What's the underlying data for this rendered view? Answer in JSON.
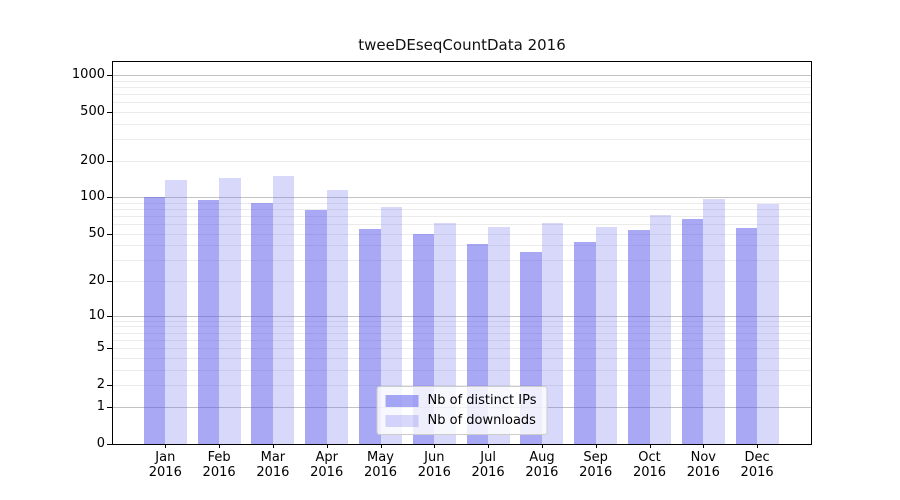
{
  "chart_data": {
    "type": "bar",
    "title": "tweeDEseqCountData 2016",
    "categories": [
      "Jan",
      "Feb",
      "Mar",
      "Apr",
      "May",
      "Jun",
      "Jul",
      "Aug",
      "Sep",
      "Oct",
      "Nov",
      "Dec"
    ],
    "x_year_suffix": "2016",
    "series": [
      {
        "name": "Nb of distinct IPs",
        "color": "rgba(81,81,235,0.5)",
        "values": [
          100,
          96,
          90,
          79,
          55,
          50,
          41,
          35,
          43,
          54,
          66,
          56
        ]
      },
      {
        "name": "Nb of downloads",
        "color": "rgba(100,100,240,0.25)",
        "values": [
          139,
          144,
          150,
          115,
          83,
          62,
          57,
          62,
          57,
          71,
          97,
          89
        ]
      }
    ],
    "yscale": "log1p",
    "ylim": [
      0,
      1000
    ],
    "y_ticks": [
      1000,
      500,
      200,
      100,
      50,
      20,
      10,
      5,
      2,
      1,
      0
    ],
    "grid": {
      "major_values": [
        1,
        10,
        100,
        1000
      ],
      "major_color": "#c3c3c3",
      "minor_color": "#ebebeb"
    },
    "legend_position": "lower center",
    "colors": {
      "spine": "#000000",
      "text": "#000000",
      "background": "#ffffff"
    }
  }
}
